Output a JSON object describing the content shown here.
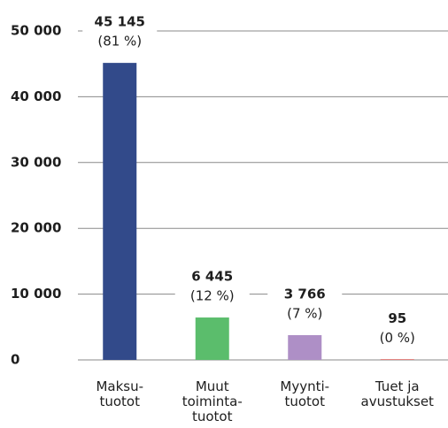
{
  "chart_data": {
    "type": "bar",
    "categories": [
      "Maksu-\ntuotot",
      "Muut\ntoiminta-\ntuotot",
      "Myynti-\ntuotot",
      "Tuet ja\navustukset"
    ],
    "values": [
      45145,
      6445,
      3766,
      95
    ],
    "value_labels": [
      "45 145",
      "6 445",
      "3 766",
      "95"
    ],
    "share_labels": [
      "(81 %)",
      "(12 %)",
      "(7 %)",
      "(0 %)"
    ],
    "colors": [
      "#324a8a",
      "#5bbd6c",
      "#ae8fc6",
      "#d9534f"
    ],
    "ylim": [
      0,
      50000
    ],
    "yticks": [
      0,
      {
        "value": 10000,
        "label": "10 000"
      },
      {
        "value": 20000,
        "label": "20 000"
      },
      {
        "value": 30000,
        "label": "30 000"
      },
      {
        "value": 40000,
        "label": "40 000"
      },
      {
        "value": 50000,
        "label": "50 000"
      }
    ],
    "grid": true
  }
}
